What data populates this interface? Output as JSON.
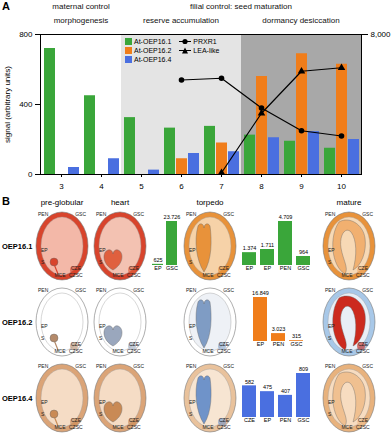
{
  "panels": [
    "A",
    "B"
  ],
  "chart_data": [
    {
      "type": "bar",
      "categories": [
        3,
        4,
        5,
        6,
        7,
        8,
        9,
        10
      ],
      "ylabel": "signal (arbitrary units)",
      "ylim": [
        0,
        800
      ],
      "yticks": [
        0,
        400,
        800
      ],
      "y2lim": [
        0,
        8000
      ],
      "y2ticks": [
        8000
      ],
      "legend": "top",
      "series": [
        {
          "name": "At-OEP16.1",
          "color": "#3aa63a",
          "values": [
            720,
            450,
            325,
            265,
            275,
            225,
            190,
            150
          ]
        },
        {
          "name": "At-OEP16.2",
          "color": "#f07d1a",
          "values": [
            0,
            0,
            0,
            90,
            180,
            560,
            690,
            630
          ]
        },
        {
          "name": "At-OEP16.4",
          "color": "#4a6fe0",
          "values": [
            40,
            90,
            25,
            120,
            130,
            210,
            245,
            200
          ]
        },
        {
          "name": "PRXR1",
          "type": "line",
          "axis": "y2",
          "color": "#000000",
          "marker": "circle",
          "line_style": "solid",
          "values": [
            null,
            null,
            null,
            5400,
            5500,
            3800,
            2500,
            2200
          ]
        },
        {
          "name": "LEA-like",
          "type": "line",
          "axis": "y2",
          "color": "#000000",
          "marker": "triangle",
          "line_style": "solid",
          "values": [
            null,
            null,
            null,
            null,
            100,
            3500,
            5900,
            6100
          ]
        }
      ],
      "annotations": {
        "control": [
          {
            "label": "maternal control",
            "categories": [
              3,
              4
            ]
          },
          {
            "label": "filial control: seed maturation",
            "categories": [
              5,
              6,
              7,
              8,
              9,
              10
            ]
          }
        ],
        "phases": [
          {
            "label": "morphogenesis",
            "categories": [
              3,
              4
            ],
            "color": "#ffffff"
          },
          {
            "label": "reserve accumulation",
            "categories": [
              5,
              6,
              7
            ],
            "color": "#e4e4e4"
          },
          {
            "label": "dormancy desiccation",
            "categories": [
              8,
              9,
              10
            ],
            "color": "#a8a8a8"
          }
        ]
      }
    },
    {
      "type": "bar",
      "categories": [
        "EP",
        "GSC"
      ],
      "values": [
        625,
        23726
      ],
      "value_labels": [
        "625",
        "23.726"
      ],
      "color": "#3aa63a",
      "data_labels": true,
      "tick_labels": "x"
    },
    {
      "type": "bar",
      "categories": [
        "EP",
        "EP",
        "PEN",
        "GSC"
      ],
      "values": [
        1374,
        1711,
        4709,
        964
      ],
      "value_labels": [
        "1.374",
        "1.711",
        "4.709",
        "964"
      ],
      "color": "#3aa63a",
      "data_labels": true,
      "tick_labels": "x"
    },
    {
      "type": "bar",
      "categories": [
        "EP",
        "PEN",
        "GSC"
      ],
      "values": [
        16849,
        3023,
        315
      ],
      "value_labels": [
        "16.849",
        "3.023",
        "315"
      ],
      "color": "#f07d1a",
      "data_labels": true,
      "tick_labels": "x"
    },
    {
      "type": "bar",
      "categories": [
        "CZE",
        "EP",
        "PEN",
        "GSC"
      ],
      "values": [
        582,
        475,
        407,
        809
      ],
      "color": "#4a6fe0",
      "data_labels": true,
      "tick_labels": "x"
    }
  ],
  "diagrams": {
    "columns": [
      "pre-globular",
      "heart",
      "torpedo",
      "mature"
    ],
    "tissue_labels": [
      "PEN",
      "GSC",
      "EP",
      "S",
      "MCE",
      "CZE",
      "CZSC"
    ],
    "rows": [
      {
        "label": "OEP16.1",
        "colors": [
          [
            "#d8442c",
            "#f3b8a8",
            "#d8442c"
          ],
          [
            "#d8442c",
            "#f3c2b2",
            "#e0603e"
          ],
          [
            "#e8923a",
            "#f6d2a8",
            "#e8923a"
          ],
          [
            "#e8923a",
            "#f7d9b5",
            "#f1b070"
          ]
        ]
      },
      {
        "label": "OEP16.2",
        "colors": [
          [
            "#ffffff",
            "#ffffff",
            "#b48a6a"
          ],
          [
            "#ffffff",
            "#ffffff",
            "#9aa7bd"
          ],
          [
            "#ffffff",
            "#eef1f6",
            "#7f9cc4"
          ],
          [
            "#a8c8e8",
            "#e8eef6",
            "#cc2a1e"
          ]
        ]
      },
      {
        "label": "OEP16.4",
        "colors": [
          [
            "#dba477",
            "#f5dcc5",
            "#c98a55"
          ],
          [
            "#dba477",
            "#f5dcc5",
            "#c98a55"
          ],
          [
            "#e9c29c",
            "#f7e5d2",
            "#6f93c9"
          ],
          [
            "#e8b27d",
            "#f7dcc0",
            "#f0c090"
          ]
        ]
      }
    ]
  }
}
